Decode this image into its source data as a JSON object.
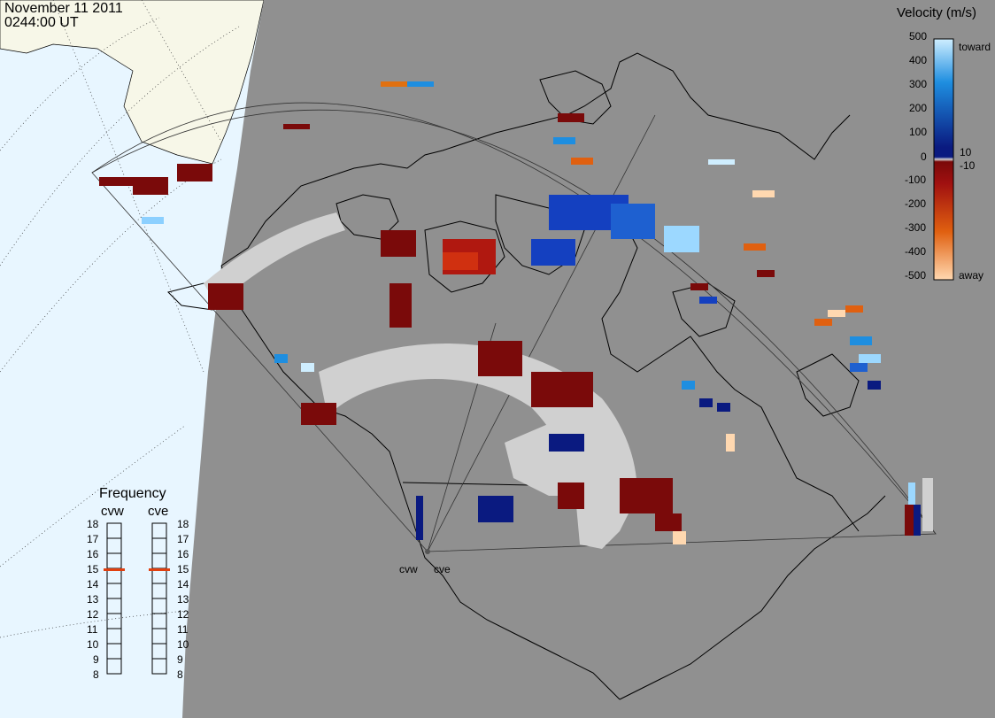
{
  "header": {
    "date": "November 11 2011",
    "time": "0244:00 UT"
  },
  "velocity_scale": {
    "title": "Velocity (m/s)",
    "ticks": [
      "500",
      "400",
      "300",
      "200",
      "100",
      "10",
      "0",
      "-10",
      "-100",
      "-200",
      "-300",
      "-400",
      "-500"
    ],
    "toward_label": "toward",
    "away_label": "away",
    "colors": {
      "toward_max": "#cfeeff",
      "toward_mid": "#1e8ee0",
      "toward_min": "#0a1a80",
      "zero": "#d0d0d0",
      "away_min": "#7a0a0a",
      "away_mid": "#e06010",
      "away_max": "#ffd8b0"
    }
  },
  "frequency": {
    "title": "Frequency",
    "radars": [
      {
        "name": "cvw",
        "value": 15
      },
      {
        "name": "cve",
        "value": 15
      }
    ],
    "ticks": [
      18,
      17,
      16,
      15,
      14,
      13,
      12,
      11,
      10,
      9,
      8
    ]
  },
  "radar_labels": [
    "cvw",
    "cve"
  ],
  "map_colors": {
    "ocean": "#e8f6ff",
    "land_day": "#f7f7e8",
    "night": "#909090",
    "coast": "#000000",
    "gate_grey": "#d0d0d0"
  }
}
